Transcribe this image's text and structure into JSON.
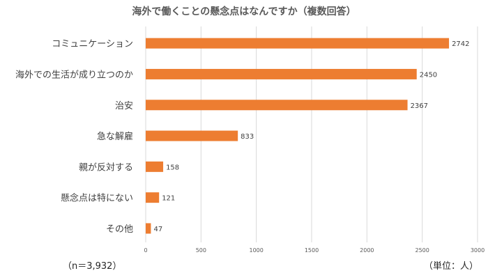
{
  "chart_data": {
    "type": "bar",
    "orientation": "horizontal",
    "title": "海外で働くことの懸念点はなんですか（複数回答）",
    "categories": [
      "コミュニケーション",
      "海外での生活が成り立つのか",
      "治安",
      "急な解雇",
      "親が反対する",
      "懸念点は特にない",
      "その他"
    ],
    "values": [
      2742,
      2450,
      2367,
      833,
      158,
      121,
      47
    ],
    "xlim": [
      0,
      3000
    ],
    "xticks": [
      0,
      500,
      1000,
      1500,
      2000,
      2500,
      3000
    ],
    "grid": "vertical",
    "bar_color": "#ED7D31",
    "data_labels": true
  },
  "notes": {
    "sample_size": "（n＝3,932）",
    "unit": "（単位：人）"
  }
}
